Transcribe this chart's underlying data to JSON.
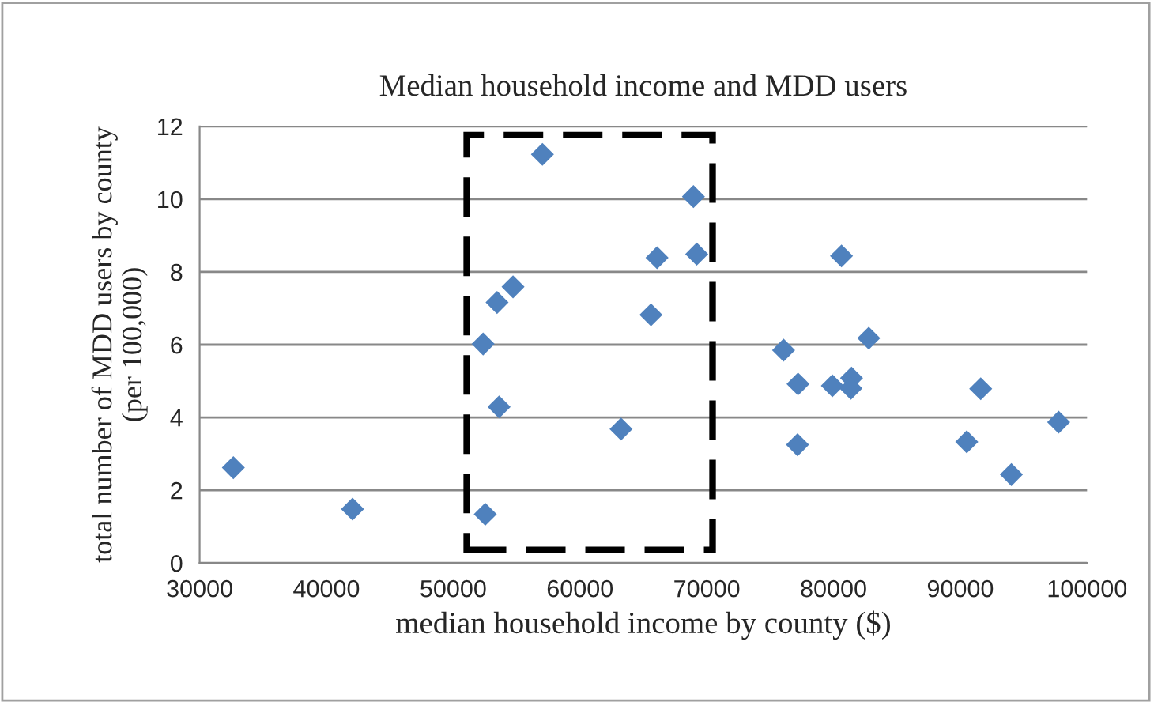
{
  "chart_data": {
    "type": "scatter",
    "title": "Median household income and MDD users",
    "xlabel": "median household income by county ($)",
    "ylabel": "total number of MDD users by county\n(per 100,000)",
    "x": [
      32660,
      42060,
      57040,
      66080,
      65600,
      54720,
      53460,
      52360,
      53620,
      63240,
      52530,
      68950,
      69210,
      80630,
      82780,
      76060,
      77200,
      79910,
      81420,
      81370,
      77160,
      91610,
      90510,
      94030,
      97760
    ],
    "values": [
      2.62,
      1.48,
      11.23,
      8.39,
      6.82,
      7.59,
      7.16,
      6.02,
      4.29,
      3.68,
      1.34,
      10.07,
      8.49,
      8.44,
      6.18,
      5.85,
      4.92,
      4.87,
      5.08,
      4.8,
      3.25,
      4.79,
      3.33,
      2.43,
      3.87
    ],
    "color": "#4f81bd",
    "marker": "diamond",
    "xlim": [
      30000,
      100000
    ],
    "xticks": [
      30000,
      40000,
      50000,
      60000,
      70000,
      80000,
      90000,
      100000
    ],
    "ylim": [
      0,
      12
    ],
    "yticks": [
      0,
      2,
      4,
      6,
      8,
      10,
      12
    ],
    "grid": "y",
    "legend": false
  }
}
